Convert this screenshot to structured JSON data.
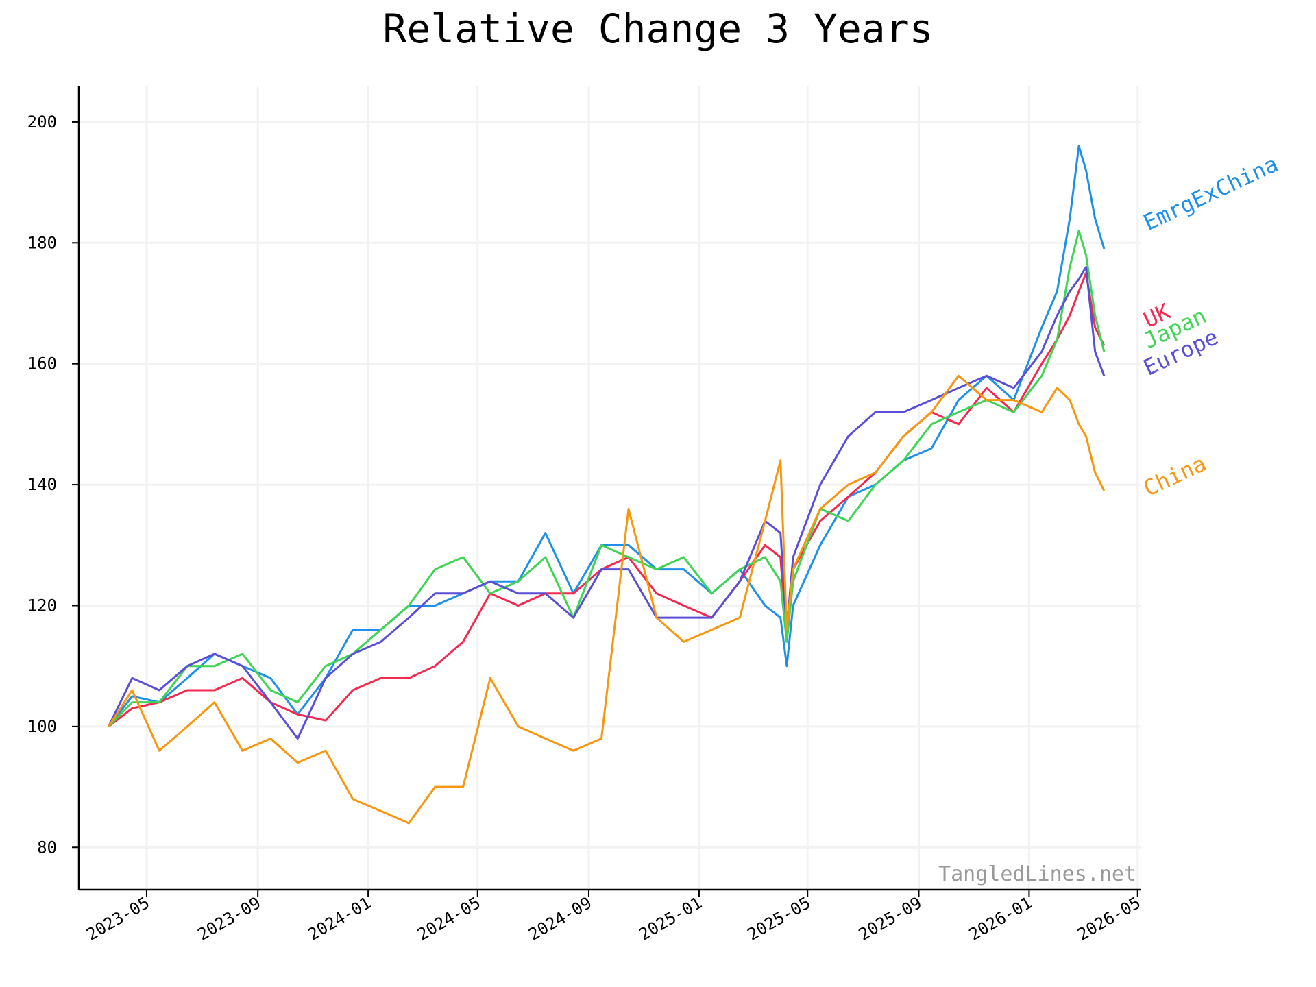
{
  "chart_data": {
    "type": "line",
    "title": "Relative Change 3 Years",
    "watermark": "TangledLines.net",
    "xlabel": "",
    "ylabel": "",
    "ylim": [
      73,
      206
    ],
    "xlim": [
      "2023-02-15",
      "2026-05-05"
    ],
    "yticks": [
      80,
      100,
      120,
      140,
      160,
      180,
      200
    ],
    "xticks": [
      "2023-05",
      "2023-09",
      "2024-01",
      "2024-05",
      "2024-09",
      "2025-01",
      "2025-05",
      "2025-09",
      "2026-01",
      "2026-05"
    ],
    "grid": true,
    "legend": "labels at line ends",
    "x": [
      "2023-03-20",
      "2023-04-15",
      "2023-05-15",
      "2023-06-15",
      "2023-07-15",
      "2023-08-15",
      "2023-09-15",
      "2023-10-15",
      "2023-11-15",
      "2023-12-15",
      "2024-01-15",
      "2024-02-15",
      "2024-03-15",
      "2024-04-15",
      "2024-05-15",
      "2024-06-15",
      "2024-07-15",
      "2024-08-15",
      "2024-09-15",
      "2024-10-15",
      "2024-11-15",
      "2024-12-15",
      "2025-01-15",
      "2025-02-15",
      "2025-03-15",
      "2025-04-01",
      "2025-04-08",
      "2025-04-15",
      "2025-05-15",
      "2025-06-15",
      "2025-07-15",
      "2025-08-15",
      "2025-09-15",
      "2025-10-15",
      "2025-11-15",
      "2025-12-15",
      "2026-01-15",
      "2026-02-01",
      "2026-02-15",
      "2026-02-25",
      "2026-03-05",
      "2026-03-15",
      "2026-03-25"
    ],
    "series": [
      {
        "name": "EmrgExChina",
        "color": "#1e90e8",
        "values": [
          100,
          105,
          104,
          108,
          112,
          110,
          108,
          102,
          108,
          116,
          116,
          120,
          120,
          122,
          124,
          124,
          132,
          122,
          130,
          130,
          126,
          126,
          122,
          126,
          120,
          118,
          110,
          120,
          130,
          138,
          140,
          144,
          146,
          154,
          158,
          154,
          166,
          172,
          184,
          196,
          192,
          184,
          179
        ]
      },
      {
        "name": "UK",
        "color": "#f5284f",
        "values": [
          100,
          103,
          104,
          106,
          106,
          108,
          104,
          102,
          101,
          106,
          108,
          108,
          110,
          114,
          122,
          120,
          122,
          122,
          126,
          128,
          122,
          120,
          118,
          124,
          130,
          128,
          114,
          126,
          134,
          138,
          142,
          148,
          152,
          150,
          156,
          152,
          160,
          164,
          168,
          172,
          175,
          166,
          163
        ]
      },
      {
        "name": "Japan",
        "color": "#3fd454",
        "values": [
          100,
          104,
          104,
          110,
          110,
          112,
          106,
          104,
          110,
          112,
          116,
          120,
          126,
          128,
          122,
          124,
          128,
          118,
          130,
          128,
          126,
          128,
          122,
          126,
          128,
          124,
          114,
          124,
          136,
          134,
          140,
          144,
          150,
          152,
          154,
          152,
          158,
          164,
          176,
          182,
          178,
          168,
          162
        ]
      },
      {
        "name": "Europe",
        "color": "#5a4fd6",
        "values": [
          100,
          108,
          106,
          110,
          112,
          110,
          104,
          98,
          108,
          112,
          114,
          118,
          122,
          122,
          124,
          122,
          122,
          118,
          126,
          126,
          118,
          118,
          118,
          124,
          134,
          132,
          116,
          128,
          140,
          148,
          152,
          152,
          154,
          156,
          158,
          156,
          162,
          168,
          172,
          174,
          176,
          162,
          158
        ]
      },
      {
        "name": "China",
        "color": "#f7960f",
        "values": [
          100,
          106,
          96,
          100,
          104,
          96,
          98,
          94,
          96,
          88,
          86,
          84,
          90,
          90,
          108,
          100,
          98,
          96,
          98,
          136,
          118,
          114,
          116,
          118,
          134,
          144,
          116,
          126,
          136,
          140,
          142,
          148,
          152,
          158,
          154,
          154,
          152,
          156,
          154,
          150,
          148,
          142,
          139
        ]
      }
    ]
  }
}
